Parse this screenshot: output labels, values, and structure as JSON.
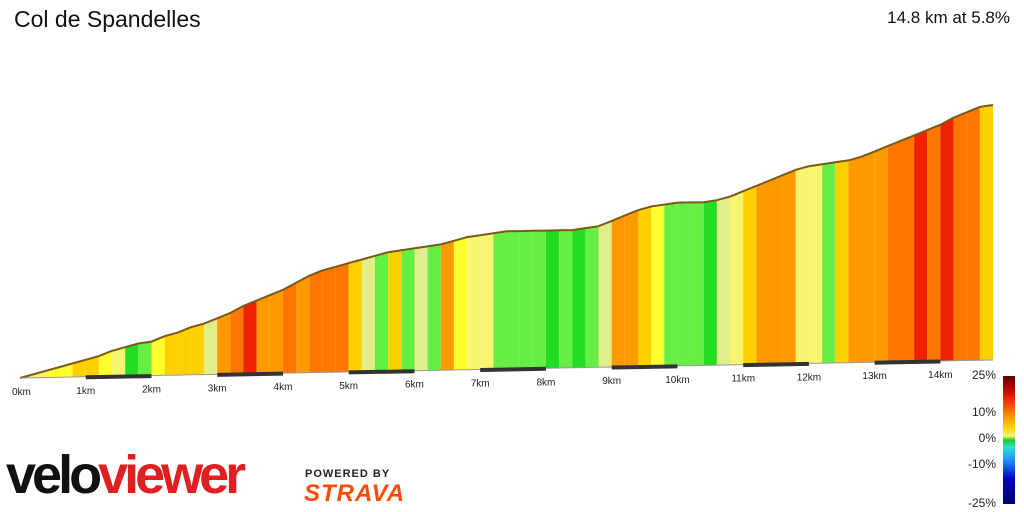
{
  "header": {
    "title": "Col de Spandelles",
    "summary": "14.8 km at 5.8%"
  },
  "chart_data": {
    "type": "area",
    "title": "Col de Spandelles",
    "subtitle": "14.8 km at 5.8%",
    "xlabel": "",
    "ylabel": "",
    "x_unit": "km",
    "x_ticks": [
      "0km",
      "1km",
      "2km",
      "3km",
      "4km",
      "5km",
      "6km",
      "7km",
      "8km",
      "9km",
      "10km",
      "11km",
      "12km",
      "13km",
      "14km"
    ],
    "xlim": [
      0,
      14.8
    ],
    "distance_km": [
      0,
      0.2,
      0.4,
      0.6,
      0.8,
      1.0,
      1.2,
      1.4,
      1.6,
      1.8,
      2.0,
      2.2,
      2.4,
      2.6,
      2.8,
      3.0,
      3.2,
      3.4,
      3.6,
      3.8,
      4.0,
      4.2,
      4.4,
      4.6,
      4.8,
      5.0,
      5.2,
      5.4,
      5.6,
      5.8,
      6.0,
      6.2,
      6.4,
      6.6,
      6.8,
      7.0,
      7.2,
      7.4,
      7.6,
      7.8,
      8.0,
      8.2,
      8.4,
      8.6,
      8.8,
      9.0,
      9.2,
      9.4,
      9.6,
      9.8,
      10.0,
      10.2,
      10.4,
      10.6,
      10.8,
      11.0,
      11.2,
      11.4,
      11.6,
      11.8,
      12.0,
      12.2,
      12.4,
      12.6,
      12.8,
      13.0,
      13.2,
      13.4,
      13.6,
      13.8,
      14.0,
      14.2,
      14.4,
      14.6,
      14.8
    ],
    "relative_height": [
      0,
      0.02,
      0.04,
      0.06,
      0.08,
      0.1,
      0.12,
      0.15,
      0.17,
      0.19,
      0.2,
      0.23,
      0.25,
      0.28,
      0.3,
      0.33,
      0.36,
      0.4,
      0.43,
      0.46,
      0.49,
      0.53,
      0.57,
      0.6,
      0.62,
      0.64,
      0.66,
      0.68,
      0.7,
      0.71,
      0.72,
      0.73,
      0.74,
      0.76,
      0.78,
      0.79,
      0.8,
      0.81,
      0.81,
      0.81,
      0.81,
      0.81,
      0.81,
      0.82,
      0.83,
      0.86,
      0.89,
      0.92,
      0.94,
      0.95,
      0.96,
      0.96,
      0.96,
      0.97,
      0.99,
      1.02,
      1.05,
      1.08,
      1.11,
      1.14,
      1.16,
      1.17,
      1.18,
      1.19,
      1.21,
      1.24,
      1.27,
      1.3,
      1.33,
      1.36,
      1.39,
      1.43,
      1.46,
      1.49,
      1.5
    ],
    "gradient_pct": [
      3,
      4,
      5,
      5,
      6,
      6,
      5,
      4,
      -1,
      2,
      5,
      6,
      6,
      7,
      3,
      9,
      11,
      13,
      8,
      8,
      10,
      9,
      12,
      12,
      11,
      6,
      3,
      1,
      6,
      1,
      3,
      1,
      8,
      5,
      4,
      4,
      2,
      2,
      1,
      2,
      0,
      1,
      0,
      1,
      3,
      8,
      8,
      7,
      5,
      2,
      2,
      1,
      0,
      3,
      4,
      6,
      8,
      9,
      8,
      4,
      4,
      2,
      6,
      8,
      9,
      9,
      11,
      12,
      13,
      12,
      14,
      12,
      10,
      6,
      5
    ],
    "legend": {
      "labels": [
        "25%",
        "10%",
        "0%",
        "-10%",
        "-25%"
      ]
    }
  },
  "branding": {
    "logo_velo": "velo",
    "logo_viewer": "viewer",
    "powered_by": "POWERED BY",
    "strava": "STRAVA"
  }
}
